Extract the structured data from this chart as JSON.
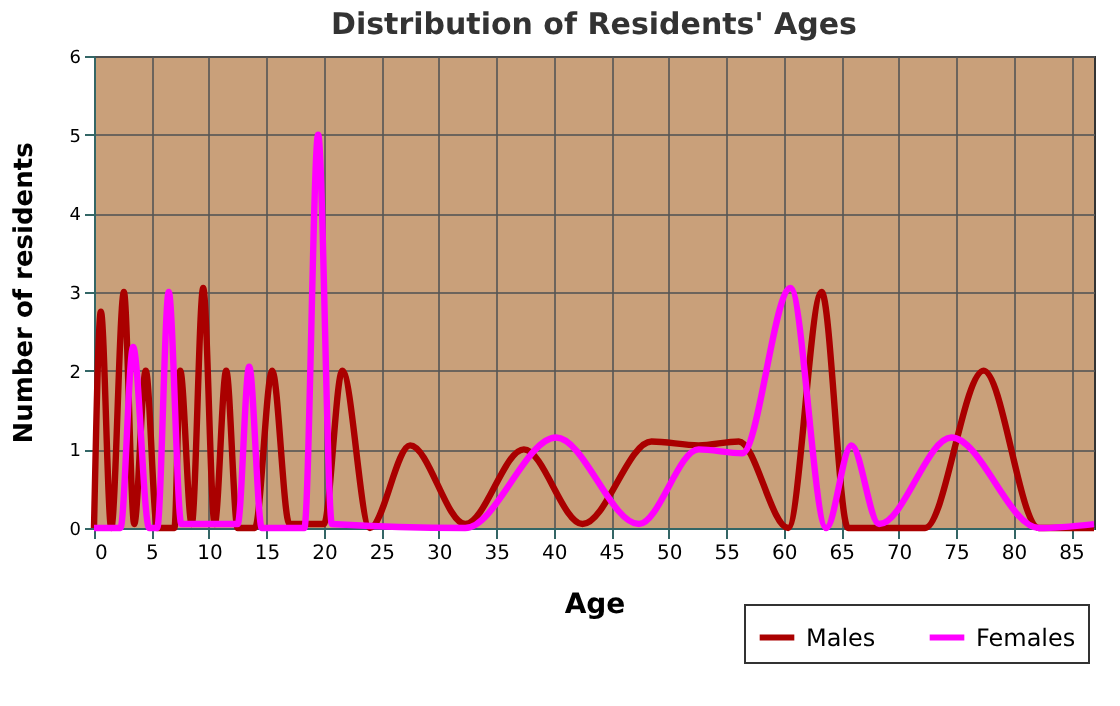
{
  "chart_data": {
    "type": "line",
    "title": "Distribution of Residents' Ages",
    "xlabel": "Age",
    "ylabel": "Number of residents",
    "xlim": [
      0,
      87
    ],
    "xticks": [
      0,
      5,
      10,
      15,
      20,
      25,
      30,
      35,
      40,
      45,
      50,
      55,
      60,
      65,
      70,
      75,
      80,
      85
    ],
    "ylim": [
      0,
      6
    ],
    "yticks": [
      0,
      1,
      2,
      3,
      4,
      5,
      6
    ],
    "grid": true,
    "legend": "bottom right",
    "line_style": "solid",
    "marker": "none",
    "series": [
      {
        "name": "Males",
        "color": "#aa0000",
        "x": [
          0,
          0.6,
          1.5,
          2.6,
          3.5,
          4.5,
          5.5,
          7,
          7.5,
          8.5,
          9.5,
          10.5,
          11.5,
          12.5,
          14,
          15.5,
          17,
          20,
          21.6,
          24,
          27.5,
          32.3,
          37.4,
          42.5,
          48.5,
          52.6,
          56.1,
          60.4,
          63.3,
          65.6,
          72.3,
          77.4,
          82.2,
          87
        ],
        "values": [
          0,
          2.75,
          0,
          3,
          0.05,
          2,
          0,
          0,
          2,
          0.05,
          3.05,
          0.05,
          2,
          0,
          0,
          2,
          0.05,
          0.05,
          2,
          0,
          1.05,
          0.05,
          1,
          0.05,
          1.1,
          1.05,
          1.1,
          0,
          3,
          0,
          0,
          2,
          0,
          0
        ]
      },
      {
        "name": "Females",
        "color": "#ff00ff",
        "x": [
          0,
          2.3,
          3.4,
          4.8,
          5.5,
          6.5,
          7.6,
          9,
          12.5,
          13.5,
          14.6,
          18.3,
          19.5,
          20.7,
          32.3,
          40.2,
          47.4,
          52.6,
          56.4,
          60.6,
          63.7,
          65.9,
          68.3,
          74.6,
          82.2,
          87
        ],
        "values": [
          0,
          0,
          2.3,
          0,
          0,
          3,
          0.05,
          0.05,
          0.05,
          2.05,
          0,
          0,
          5,
          0.05,
          0,
          1.15,
          0.05,
          1,
          0.95,
          3.05,
          0,
          1.05,
          0.05,
          1.15,
          0,
          0.05
        ]
      }
    ]
  }
}
